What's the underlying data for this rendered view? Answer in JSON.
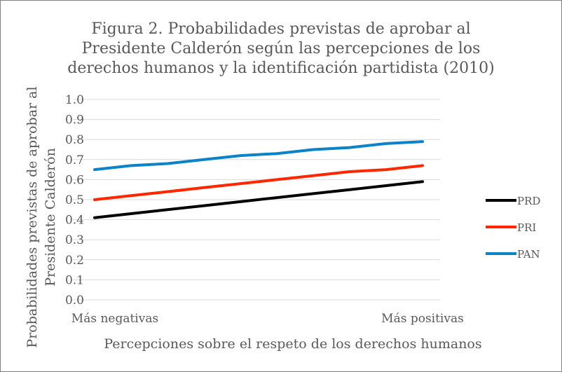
{
  "chart_data": {
    "type": "line",
    "title_lines": [
      "Figura 2. Probabilidades previstas de aprobar al",
      "Presidente Calderón según las percepciones de los",
      "derechos humanos y la identificación partidista (2010)"
    ],
    "xlabel": "Percepciones sobre el respeto de los derechos humanos",
    "ylabel_lines": [
      "Probabilidades previstas de aprobar al",
      "Presidente Calderón"
    ],
    "x_tick_labels": [
      "Más negativas",
      "Más positivas"
    ],
    "y_tick_labels": [
      "0.0",
      "0.1",
      "0.2",
      "0.3",
      "0.4",
      "0.5",
      "0.6",
      "0.7",
      "0.8",
      "0.9",
      "1.0"
    ],
    "ylim": [
      0,
      1.0
    ],
    "x_points": 10,
    "grid": true,
    "legend_position": "right",
    "series": [
      {
        "name": "PRD",
        "color": "#000000",
        "values": [
          0.41,
          0.43,
          0.45,
          0.47,
          0.49,
          0.51,
          0.53,
          0.55,
          0.57,
          0.59
        ]
      },
      {
        "name": "PRI",
        "color": "#ff2600",
        "values": [
          0.5,
          0.52,
          0.54,
          0.56,
          0.58,
          0.6,
          0.62,
          0.64,
          0.65,
          0.67
        ]
      },
      {
        "name": "PAN",
        "color": "#0a83c8",
        "values": [
          0.65,
          0.67,
          0.68,
          0.7,
          0.72,
          0.73,
          0.75,
          0.76,
          0.78,
          0.79
        ]
      }
    ]
  }
}
